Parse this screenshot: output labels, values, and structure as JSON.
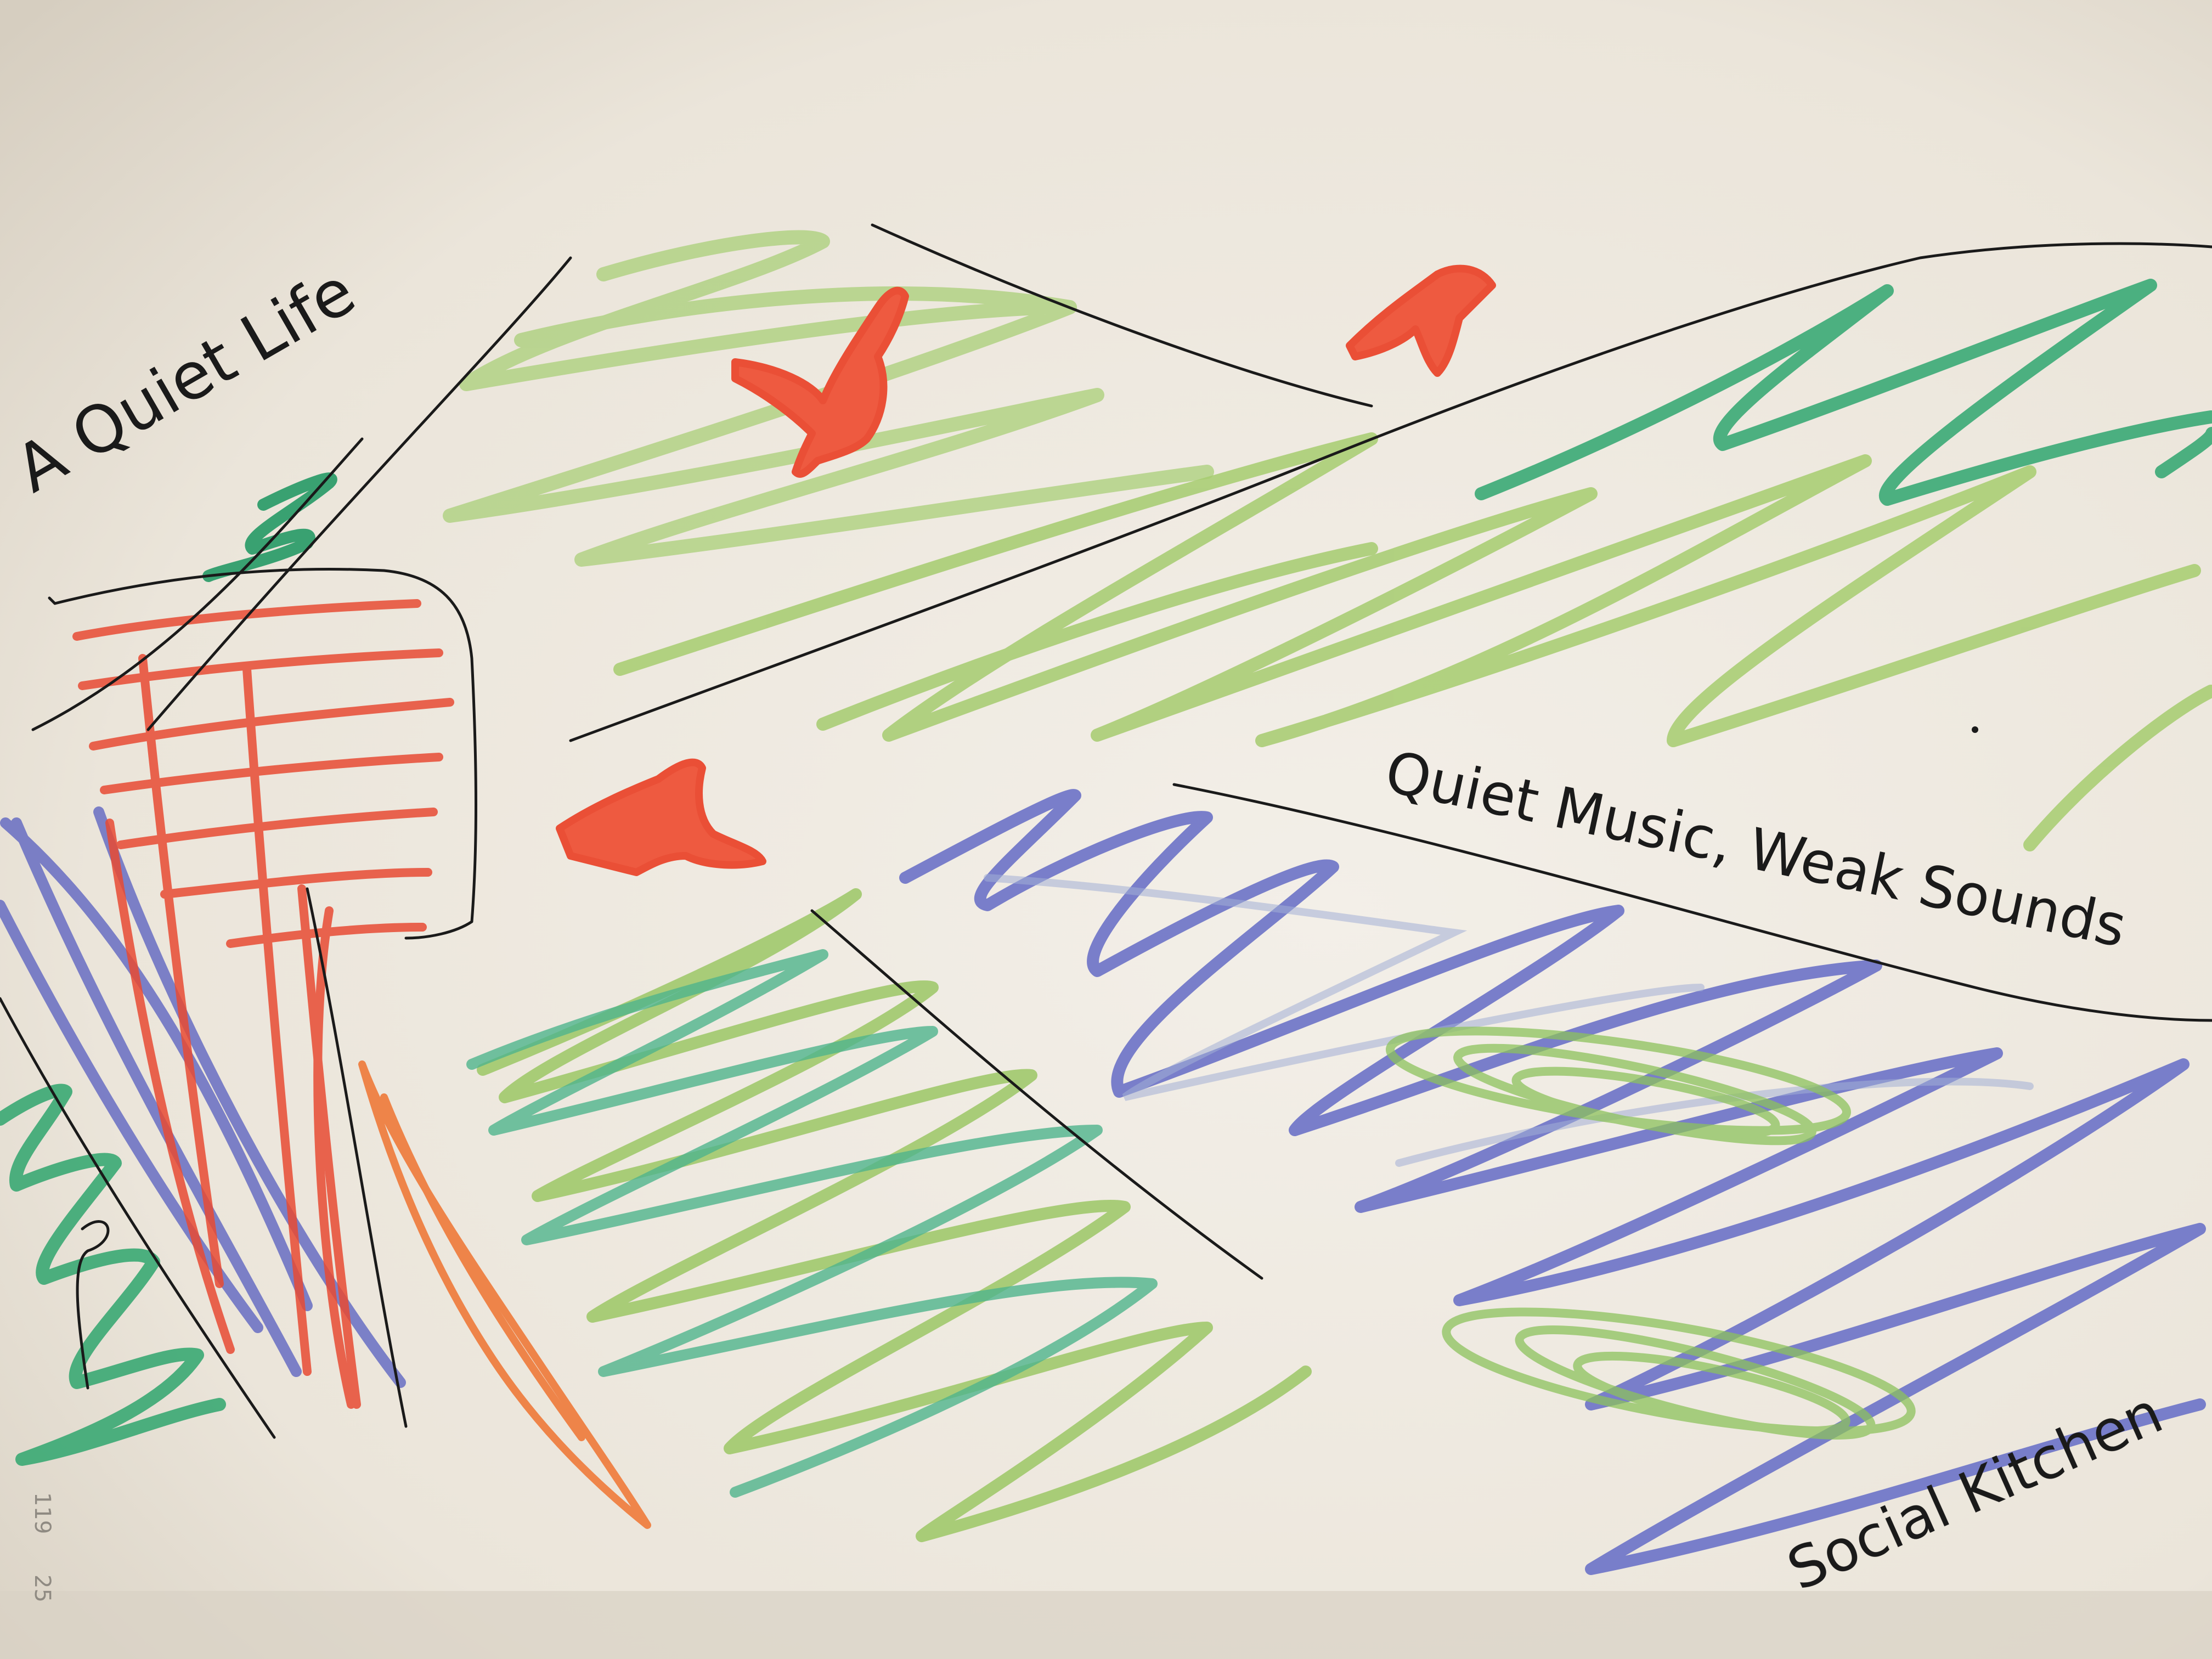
{
  "drawing": {
    "labels": {
      "quiet_life": "A Quiet Life",
      "quiet_music": "Quiet Music, Weak Sounds",
      "social_kitchen": "Social Kitchen"
    },
    "page_numbers": {
      "primary": "119",
      "secondary": "25"
    },
    "colors": {
      "paper": "#efeae2",
      "ink": "#1a1a1a",
      "light_green": "#9cc76a",
      "teal_green": "#3fae7a",
      "purple_blue": "#7077c9",
      "red": "#ea4f36",
      "orange": "#ef7a3a",
      "bird_red": "#ee5a40"
    }
  }
}
